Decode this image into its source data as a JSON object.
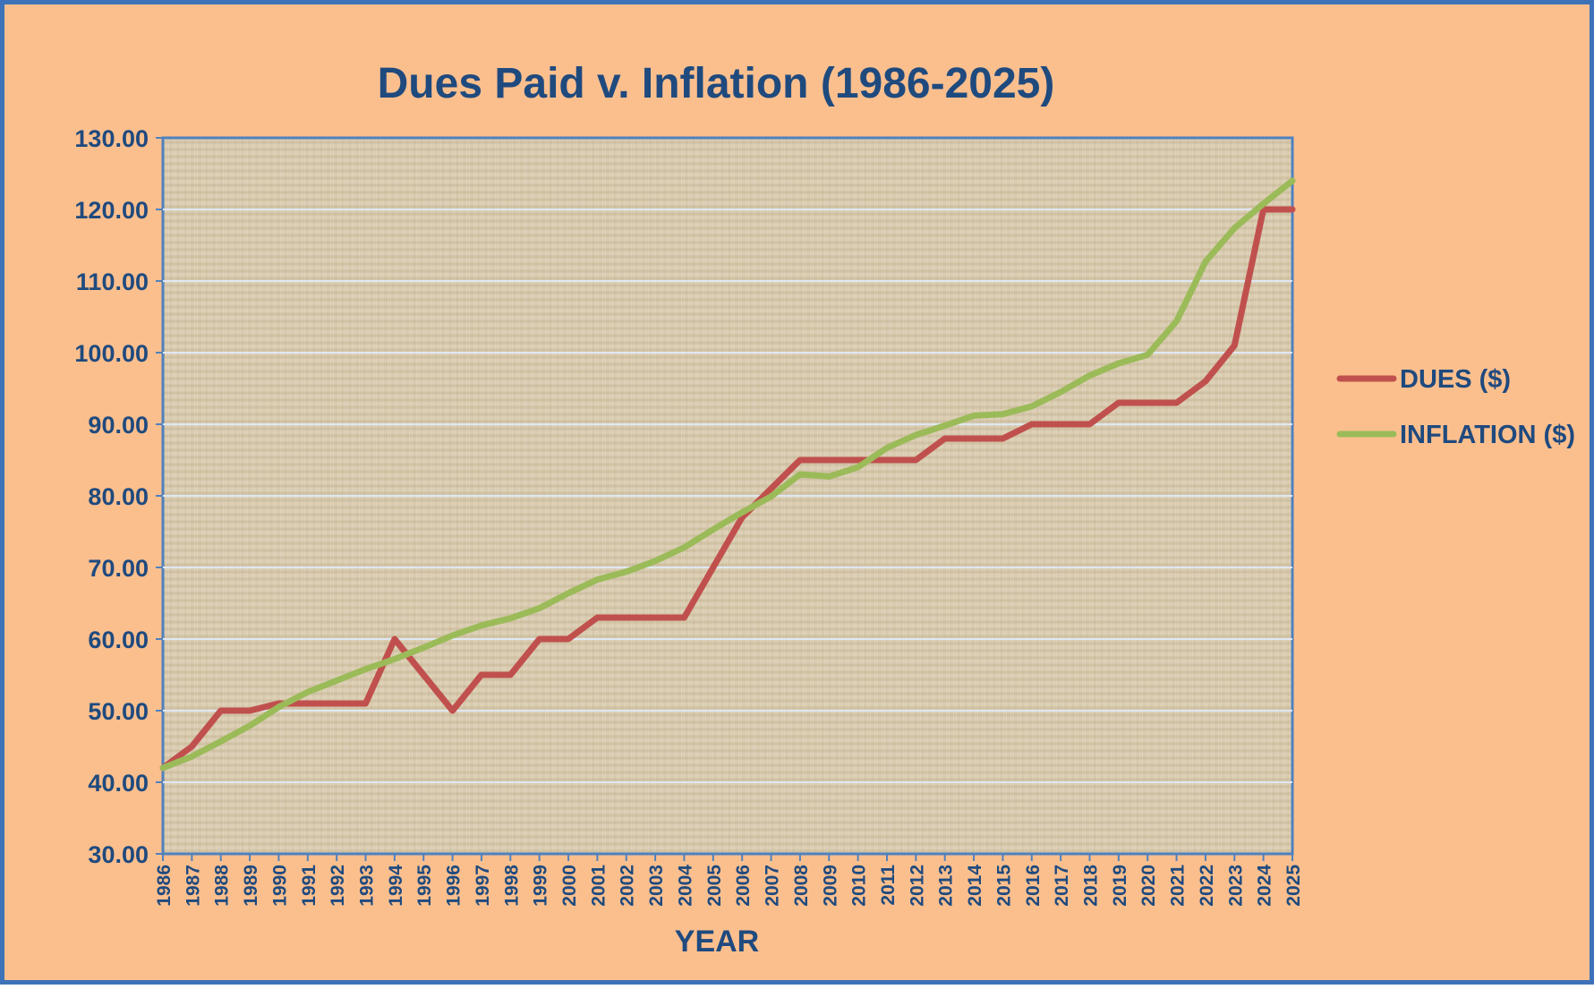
{
  "chart_data": {
    "type": "line",
    "title": "Dues Paid v. Inflation (1986-2025)",
    "xlabel": "YEAR",
    "ylabel": "",
    "ylim": [
      30,
      130
    ],
    "yticks": [
      "30.00",
      "40.00",
      "50.00",
      "60.00",
      "70.00",
      "80.00",
      "90.00",
      "100.00",
      "110.00",
      "120.00",
      "130.00"
    ],
    "x": [
      1986,
      1987,
      1988,
      1989,
      1990,
      1991,
      1992,
      1993,
      1994,
      1995,
      1996,
      1997,
      1998,
      1999,
      2000,
      2001,
      2002,
      2003,
      2004,
      2005,
      2006,
      2007,
      2008,
      2009,
      2010,
      2011,
      2012,
      2013,
      2014,
      2015,
      2016,
      2017,
      2018,
      2019,
      2020,
      2021,
      2022,
      2023,
      2024,
      2025
    ],
    "grid": true,
    "legend_position": "right",
    "series": [
      {
        "name": "DUES ($)",
        "color": "#c0504d",
        "values": [
          42,
          45,
          50,
          50,
          51,
          51,
          51,
          51,
          60,
          55,
          50,
          55,
          55,
          60,
          60,
          63,
          63,
          63,
          63,
          70,
          77,
          81,
          85,
          85,
          85,
          85,
          85,
          88,
          88,
          88,
          90,
          90,
          90,
          93,
          93,
          93,
          96,
          101,
          120,
          120
        ]
      },
      {
        "name": "INFLATION ($)",
        "color": "#9bbb59",
        "values": [
          42,
          43.6,
          45.7,
          47.9,
          50.5,
          52.6,
          54.2,
          55.8,
          57.2,
          58.8,
          60.5,
          61.9,
          62.9,
          64.3,
          66.4,
          68.3,
          69.4,
          70.9,
          72.8,
          75.3,
          77.7,
          79.9,
          83,
          82.7,
          84,
          86.7,
          88.5,
          89.8,
          91.2,
          91.4,
          92.5,
          94.5,
          96.8,
          98.5,
          99.7,
          104.4,
          112.7,
          117.4,
          120.8,
          124
        ]
      }
    ]
  }
}
